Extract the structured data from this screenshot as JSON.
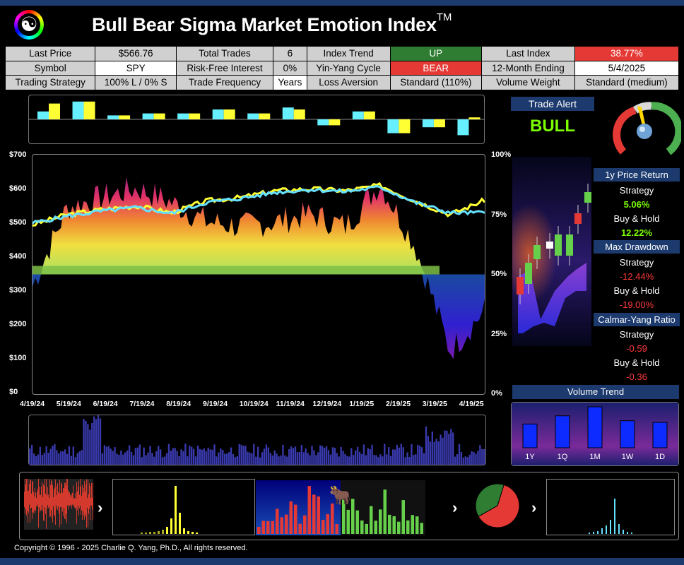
{
  "header": {
    "title": "Bull Bear Sigma Market Emotion Index",
    "tm": "TM",
    "logo_icon": "yin-yang-icon"
  },
  "info_rows": [
    [
      {
        "l": "Last Price",
        "v": "$566.76"
      },
      {
        "l": "Total Trades",
        "v": "6"
      },
      {
        "l": "Index Trend",
        "v": "UP"
      },
      {
        "l": "Last Index",
        "v": "38.77%"
      }
    ],
    [
      {
        "l": "Symbol",
        "v": "SPY"
      },
      {
        "l": "Risk-Free Interest",
        "v": "0%"
      },
      {
        "l": "Yin-Yang Cycle",
        "v": "BEAR"
      },
      {
        "l": "12-Month Ending",
        "v": "5/4/2025"
      }
    ],
    [
      {
        "l": "Trading Strategy",
        "v": "100% L / 0% S"
      },
      {
        "l": "Trade Frequency",
        "v": "Years"
      },
      {
        "l": "Loss Aversion",
        "v": "Standard (110%)"
      },
      {
        "l": "Volume Weight",
        "v": "Standard (medium)"
      }
    ]
  ],
  "colors": {
    "up": "#2e7d32",
    "down": "#e53935",
    "navy": "#1c3a6e",
    "price": "#ffff33",
    "index": "#66e0ff"
  },
  "main_chart": {
    "y_left": [
      "$700",
      "$600",
      "$500",
      "$400",
      "$300",
      "$200",
      "$100",
      "$0"
    ],
    "y_right": [
      "100%",
      "75%",
      "50%",
      "25%",
      "0%"
    ],
    "x_labels": [
      "4/19/24",
      "5/19/24",
      "6/19/24",
      "7/19/24",
      "8/19/24",
      "9/19/24",
      "10/19/24",
      "11/19/24",
      "12/19/24",
      "1/19/25",
      "2/19/25",
      "3/19/25",
      "4/19/25"
    ]
  },
  "chart_data": {
    "type": "line",
    "x": [
      "4/19/24",
      "5/19/24",
      "6/19/24",
      "7/19/24",
      "8/19/24",
      "9/19/24",
      "10/19/24",
      "11/19/24",
      "12/19/24",
      "1/19/25",
      "2/19/25",
      "3/19/25",
      "4/19/25",
      "5/2/25"
    ],
    "series": [
      {
        "values": [
          495,
          525,
          540,
          550,
          530,
          565,
          575,
          595,
          600,
          595,
          610,
          565,
          525,
          567
        ]
      },
      {
        "values": [
          500,
          520,
          535,
          545,
          528,
          560,
          572,
          590,
          598,
          592,
          605,
          560,
          530,
          530
        ]
      }
    ],
    "index_band_percent": [
      45,
      78,
      82,
      86,
      80,
      72,
      70,
      72,
      75,
      70,
      88,
      62,
      18,
      35
    ],
    "ylim": [
      0,
      700
    ],
    "y2lim": [
      0,
      100
    ],
    "monthly_bars": [
      [
        0.4,
        0.8
      ],
      [
        0.9,
        0.9
      ],
      [
        0.2,
        0.2
      ],
      [
        0.3,
        0.3
      ],
      [
        0.3,
        0.3
      ],
      [
        0.5,
        0.5
      ],
      [
        0.3,
        0.3
      ],
      [
        0.6,
        0.5
      ],
      [
        -0.3,
        -0.3
      ],
      [
        0.4,
        0.4
      ],
      [
        -0.7,
        -0.7
      ],
      [
        -0.4,
        -0.4
      ],
      [
        -0.8,
        0.1
      ]
    ],
    "volume_trend": {
      "categories": [
        "1Y",
        "1Q",
        "1M",
        "1W",
        "1D"
      ],
      "values": [
        0.58,
        0.78,
        1.0,
        0.66,
        0.62
      ]
    },
    "pie": [
      {
        "label": "bear",
        "value": 0.62,
        "color": "#e53935"
      },
      {
        "label": "bull",
        "value": 0.38,
        "color": "#2e7d32"
      }
    ]
  },
  "trade_alert": {
    "title": "Trade Alert",
    "signal": "BULL"
  },
  "stats": {
    "price_return": {
      "title": "1y Price Return",
      "strategy_label": "Strategy",
      "strategy": "5.06%",
      "bh_label": "Buy & Hold",
      "bh": "12.22%"
    },
    "max_drawdown": {
      "title": "Max Drawdown",
      "strategy_label": "Strategy",
      "strategy": "-12.44%",
      "bh_label": "Buy & Hold",
      "bh": "-19.00%"
    },
    "calmar": {
      "title": "Calmar-Yang Ratio",
      "strategy_label": "Strategy",
      "strategy": "-0.59",
      "bh_label": "Buy & Hold",
      "bh": "-0.36"
    }
  },
  "volume_trend": {
    "title": "Volume Trend",
    "labels": [
      "1Y",
      "1Q",
      "1M",
      "1W",
      "1D"
    ]
  },
  "copyright": "Copyright © 1996 - 2025 Charlie Q. Yang, Ph.D., All rights reserved."
}
